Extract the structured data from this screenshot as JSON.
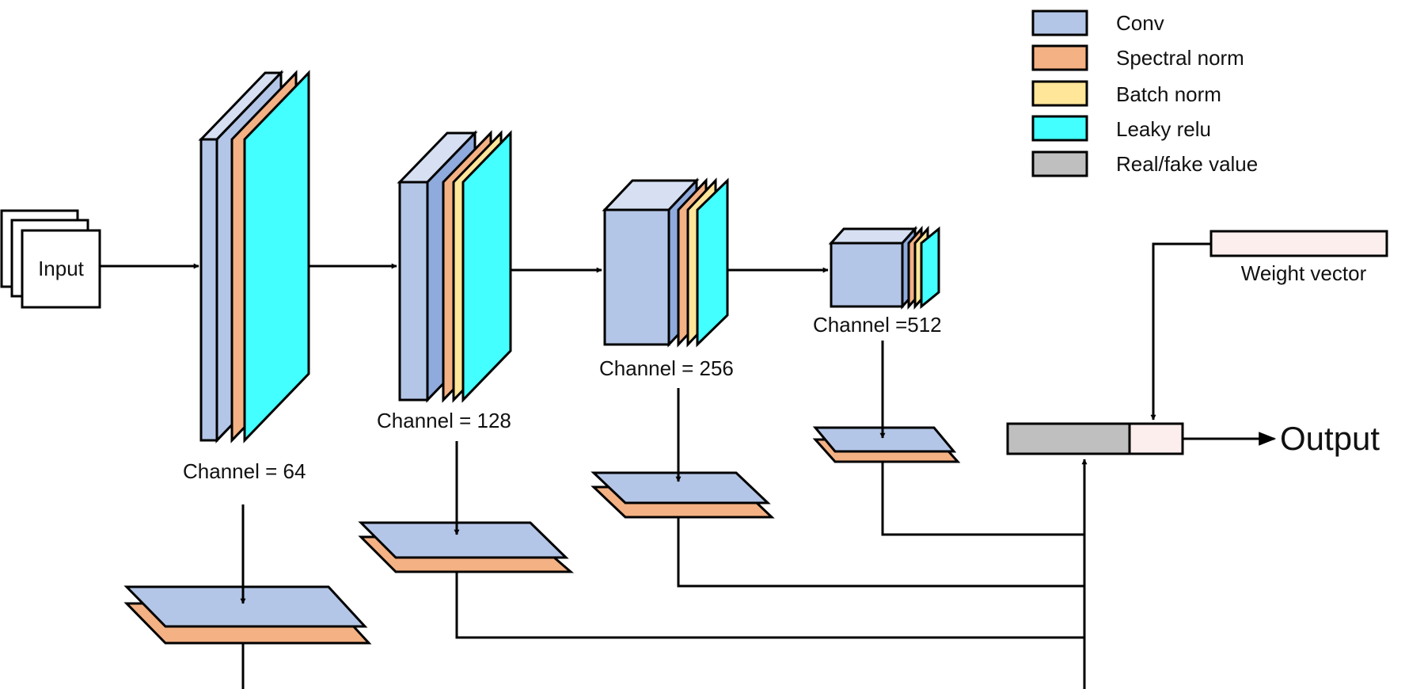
{
  "legend": {
    "items": [
      {
        "label": "Conv",
        "color": "#b4c6e7"
      },
      {
        "label": "Spectral norm",
        "color": "#f4b183"
      },
      {
        "label": "Batch norm",
        "color": "#ffe699"
      },
      {
        "label": "Leaky relu",
        "color": "#43ffff"
      },
      {
        "label": "Real/fake value",
        "color": "#bfbfbf"
      }
    ]
  },
  "input_label": "Input",
  "blocks": [
    {
      "channel_label": "Channel  = 64"
    },
    {
      "channel_label": "Channel  = 128"
    },
    {
      "channel_label": "Channel  = 256"
    },
    {
      "channel_label": "Channel  =512"
    }
  ],
  "weight_vector_label": "Weight vector",
  "output_label": "Output",
  "colors": {
    "conv": "#b4c6e7",
    "conv_top": "#d6e0f2",
    "conv_dark": "#8faadc",
    "spectral_norm": "#f4b183",
    "batch_norm": "#ffe699",
    "leaky_relu": "#43ffff",
    "real_fake": "#bfbfbf",
    "weight_vector": "#fdeeee"
  }
}
